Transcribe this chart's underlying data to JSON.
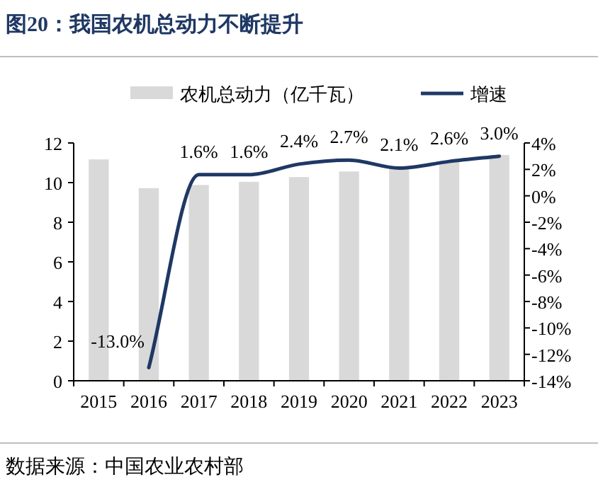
{
  "chart_data": {
    "type": "bar",
    "title": "图20：我国农机总动力不断提升",
    "categories": [
      "2015",
      "2016",
      "2017",
      "2018",
      "2019",
      "2020",
      "2021",
      "2022",
      "2023"
    ],
    "series": [
      {
        "name": "农机总动力（亿千瓦）",
        "color": "#d9d9d9",
        "values": [
          11.17,
          9.72,
          9.88,
          10.04,
          10.28,
          10.56,
          10.78,
          11.06,
          11.39
        ]
      },
      {
        "name": "增速",
        "type": "line",
        "axis": "y2",
        "color": "#1f3864",
        "marker": "none",
        "values": [
          null,
          -13.0,
          1.6,
          1.6,
          2.4,
          2.7,
          2.1,
          2.6,
          3.0
        ],
        "value_labels": [
          null,
          "-13.0%",
          "1.6%",
          "1.6%",
          "2.4%",
          "2.7%",
          "2.1%",
          "2.6%",
          "3.0%"
        ]
      }
    ],
    "ylim": [
      0,
      12
    ],
    "yticks": [
      0,
      2,
      4,
      6,
      8,
      10,
      12
    ],
    "y2lim": [
      -14,
      4
    ],
    "y2ticks": [
      {
        "value": 4,
        "label": "4%"
      },
      {
        "value": 2,
        "label": "2%"
      },
      {
        "value": 0,
        "label": "0%"
      },
      {
        "value": -2,
        "label": "-2%"
      },
      {
        "value": -4,
        "label": "-4%"
      },
      {
        "value": -6,
        "label": "-6%"
      },
      {
        "value": -8,
        "label": "-8%"
      },
      {
        "value": -10,
        "label": "-10%"
      },
      {
        "value": -12,
        "label": "-12%"
      },
      {
        "value": -14,
        "label": "-14%"
      }
    ],
    "legend": "top",
    "grid": false,
    "annotations": [
      "数据来源：中国农业农村部"
    ]
  }
}
